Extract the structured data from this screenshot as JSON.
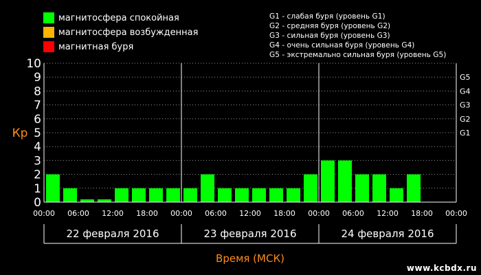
{
  "legend": [
    {
      "label": "магнитосфера спокойная",
      "color": "#00ff00"
    },
    {
      "label": "магнитосфера возбужденная",
      "color": "#ffb400"
    },
    {
      "label": "магнитная буря",
      "color": "#ff0000"
    }
  ],
  "storm_scale": [
    "G1 - слабая буря (уровень G1)",
    "G2 - средняя буря (уровень G2)",
    "G3 - сильная буря (уровень G3)",
    "G4 - очень сильная буря (уровень G4)",
    "G5 - экстремально сильная буря (уровень G5)"
  ],
  "watermark": "www.kcbdx.ru",
  "chart_data": {
    "type": "bar",
    "ylabel": "Кр",
    "xlabel": "Время (МСК)",
    "ylim": [
      0,
      10
    ],
    "yticks": [
      "0",
      "1",
      "2",
      "3",
      "4",
      "5",
      "6",
      "7",
      "8",
      "9",
      "10"
    ],
    "right_ticks": [
      {
        "label": "G1",
        "y": 5
      },
      {
        "label": "G2",
        "y": 6
      },
      {
        "label": "G3",
        "y": 7
      },
      {
        "label": "G4",
        "y": 8
      },
      {
        "label": "G5",
        "y": 9
      }
    ],
    "grid": true,
    "xticks": [
      "00:00",
      "06:00",
      "12:00",
      "18:00",
      "00:00",
      "06:00",
      "12:00",
      "18:00",
      "00:00",
      "06:00",
      "12:00",
      "18:00",
      "00:00"
    ],
    "days": [
      "22 февраля 2016",
      "23 февраля 2016",
      "24 февраля 2016"
    ],
    "intervals_per_day": 8,
    "values": [
      2,
      1,
      0.2,
      0.2,
      1,
      1,
      1,
      1,
      1,
      2,
      1,
      1,
      1,
      1,
      1,
      2,
      3,
      3,
      2,
      2,
      1,
      2,
      null,
      null
    ],
    "bar_color": "#00ff00"
  }
}
